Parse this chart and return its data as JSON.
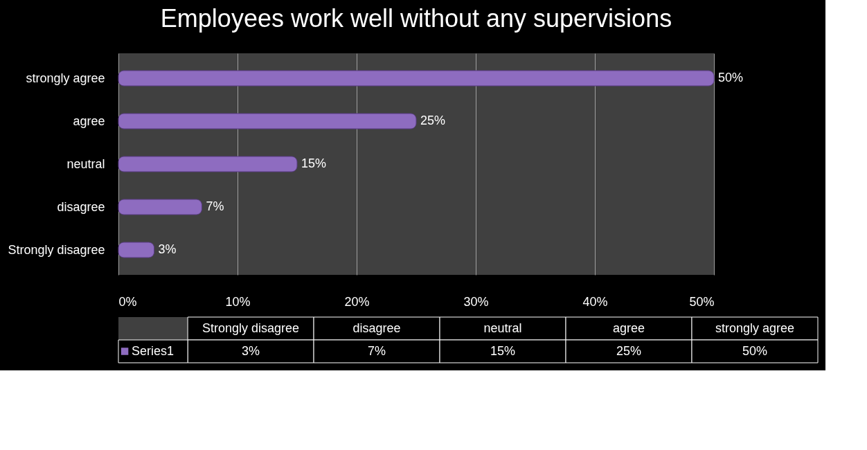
{
  "chart_data": {
    "type": "bar",
    "title": "Employees work well without any supervisions",
    "orientation": "horizontal",
    "categories": [
      "strongly agree",
      "agree",
      "neutral",
      "disagree",
      "Strongly disagree"
    ],
    "series": [
      {
        "name": "Series1",
        "color": "#8e6cc0",
        "values": [
          50,
          25,
          15,
          7,
          3
        ],
        "value_labels": [
          "50%",
          "25%",
          "15%",
          "7%",
          "3%"
        ]
      }
    ],
    "xlim": [
      0,
      50
    ],
    "xticks": [
      {
        "value": 0,
        "label": "0%"
      },
      {
        "value": 10,
        "label": "10%"
      },
      {
        "value": 20,
        "label": "20%"
      },
      {
        "value": 30,
        "label": "30%"
      },
      {
        "value": 40,
        "label": "40%"
      },
      {
        "value": 50,
        "label": "50%"
      }
    ],
    "grid": "x",
    "legend": "bottom"
  }
}
